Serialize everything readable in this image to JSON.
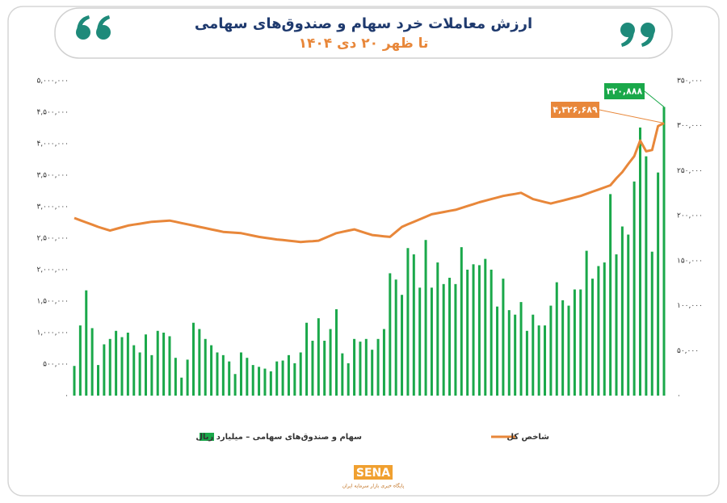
{
  "chart_data": {
    "type": "bar",
    "title": "ارزش معاملات خرد سهام و صندوق‌های سهامی",
    "subtitle": "تا ظهر ۲۰ دی ۱۴۰۴",
    "ylim": [
      0,
      5000000
    ],
    "yticks": [
      {
        "value": 0,
        "label": "۰"
      },
      {
        "value": 500000,
        "label": "۵۰۰,۰۰۰"
      },
      {
        "value": 1000000,
        "label": "۱,۰۰۰,۰۰۰"
      },
      {
        "value": 1500000,
        "label": "۱,۵۰۰,۰۰۰"
      },
      {
        "value": 2000000,
        "label": "۲,۰۰۰,۰۰۰"
      },
      {
        "value": 2500000,
        "label": "۲,۵۰۰,۰۰۰"
      },
      {
        "value": 3000000,
        "label": "۳,۰۰۰,۰۰۰"
      },
      {
        "value": 3500000,
        "label": "۳,۵۰۰,۰۰۰"
      },
      {
        "value": 4000000,
        "label": "۴,۰۰۰,۰۰۰"
      },
      {
        "value": 4500000,
        "label": "۴,۵۰۰,۰۰۰"
      },
      {
        "value": 5000000,
        "label": "۵,۰۰۰,۰۰۰"
      }
    ],
    "y2lim": [
      0,
      350000
    ],
    "y2ticks": [
      {
        "value": 0,
        "label": "۰"
      },
      {
        "value": 50000,
        "label": "۵۰,۰۰۰"
      },
      {
        "value": 100000,
        "label": "۱۰۰,۰۰۰"
      },
      {
        "value": 150000,
        "label": "۱۵۰,۰۰۰"
      },
      {
        "value": 200000,
        "label": "۲۰۰,۰۰۰"
      },
      {
        "value": 250000,
        "label": "۲۵۰,۰۰۰"
      },
      {
        "value": 300000,
        "label": "۳۰۰,۰۰۰"
      },
      {
        "value": 350000,
        "label": "۳۵۰,۰۰۰"
      }
    ],
    "grid": false,
    "series": [
      {
        "name": "سهام و صندوق‌های سهامی – میلیارد ریال",
        "type": "bar",
        "axis": "y2",
        "color": "#1aa84a",
        "values": [
          33000,
          78000,
          117000,
          75000,
          34000,
          57000,
          63000,
          72000,
          65000,
          70000,
          56000,
          48000,
          68000,
          45000,
          72000,
          70000,
          66000,
          42000,
          20000,
          40000,
          81000,
          74000,
          63000,
          56000,
          48000,
          45000,
          38000,
          24000,
          48000,
          42000,
          34000,
          32000,
          30000,
          27000,
          38000,
          39000,
          45000,
          36000,
          48000,
          81000,
          61000,
          86000,
          61000,
          74000,
          96000,
          47000,
          36000,
          63000,
          60000,
          63000,
          51000,
          63000,
          74000,
          136000,
          129000,
          112000,
          164000,
          157000,
          120000,
          173000,
          120000,
          148000,
          124000,
          131000,
          124000,
          165000,
          140000,
          146000,
          145000,
          152000,
          140000,
          99000,
          130000,
          95000,
          90000,
          104000,
          72000,
          90000,
          78000,
          78000,
          100000,
          126000,
          106000,
          100000,
          118000,
          118000,
          161000,
          130000,
          144000,
          148000,
          224000,
          157000,
          188000,
          179000,
          238000,
          298000,
          266000,
          160000,
          248000,
          320888
        ],
        "value_labels": [
          null,
          null,
          null,
          null,
          null,
          null,
          null,
          null,
          null,
          null,
          null,
          null,
          null,
          null,
          null,
          null,
          null,
          null,
          null,
          null,
          null,
          null,
          null,
          null,
          null,
          null,
          null,
          null,
          null,
          null,
          null,
          null,
          null,
          null,
          null,
          null,
          null,
          null,
          null,
          null,
          null,
          null,
          null,
          null,
          null,
          null,
          null,
          null,
          null,
          null,
          null,
          null,
          null,
          null,
          null,
          null,
          null,
          null,
          null,
          null,
          null,
          null,
          null,
          null,
          null,
          null,
          null,
          null,
          null,
          null,
          null,
          null,
          null,
          null,
          null,
          null,
          null,
          null,
          null,
          null,
          null,
          null,
          null,
          null,
          null,
          null,
          null,
          null,
          null,
          null,
          null,
          null,
          null,
          null,
          null,
          null,
          null,
          null,
          null,
          "۳۲۰,۸۸۸"
        ]
      },
      {
        "name": "شاخص کل",
        "type": "line",
        "color": "#e8873a",
        "values": [
          2820000,
          2785000,
          2750000,
          2715000,
          2680000,
          2650000,
          2620000,
          2647000,
          2673000,
          2700000,
          2715000,
          2730000,
          2745000,
          2760000,
          2767000,
          2773000,
          2780000,
          2760000,
          2740000,
          2720000,
          2700000,
          2680000,
          2660000,
          2640000,
          2620000,
          2600000,
          2593000,
          2587000,
          2580000,
          2560000,
          2540000,
          2520000,
          2507000,
          2493000,
          2480000,
          2470000,
          2460000,
          2450000,
          2440000,
          2447000,
          2453000,
          2460000,
          2500000,
          2540000,
          2580000,
          2600000,
          2620000,
          2640000,
          2610000,
          2580000,
          2550000,
          2540000,
          2530000,
          2520000,
          2600000,
          2680000,
          2720000,
          2760000,
          2800000,
          2840000,
          2880000,
          2898000,
          2915000,
          2933000,
          2950000,
          2980000,
          3010000,
          3040000,
          3070000,
          3095000,
          3120000,
          3145000,
          3170000,
          3187000,
          3203000,
          3220000,
          3170000,
          3120000,
          3097000,
          3073000,
          3050000,
          3074000,
          3098000,
          3122000,
          3146000,
          3170000,
          3204000,
          3238000,
          3272000,
          3306000,
          3340000,
          3450000,
          3550000,
          3680000,
          3800000,
          4050000,
          3880000,
          3900000,
          4280000,
          4326689
        ],
        "value_labels": [
          null,
          null,
          null,
          null,
          null,
          null,
          null,
          null,
          null,
          null,
          null,
          null,
          null,
          null,
          null,
          null,
          null,
          null,
          null,
          null,
          null,
          null,
          null,
          null,
          null,
          null,
          null,
          null,
          null,
          null,
          null,
          null,
          null,
          null,
          null,
          null,
          null,
          null,
          null,
          null,
          null,
          null,
          null,
          null,
          null,
          null,
          null,
          null,
          null,
          null,
          null,
          null,
          null,
          null,
          null,
          null,
          null,
          null,
          null,
          null,
          null,
          null,
          null,
          null,
          null,
          null,
          null,
          null,
          null,
          null,
          null,
          null,
          null,
          null,
          null,
          null,
          null,
          null,
          null,
          null,
          null,
          null,
          null,
          null,
          null,
          null,
          null,
          null,
          null,
          null,
          null,
          null,
          null,
          null,
          null,
          null,
          null,
          null,
          null,
          "۴,۳۲۶,۶۸۹"
        ]
      }
    ]
  },
  "footer": {
    "logo": "SENA",
    "tagline": "پایگاه خبری بازار سرمایه ایران"
  }
}
